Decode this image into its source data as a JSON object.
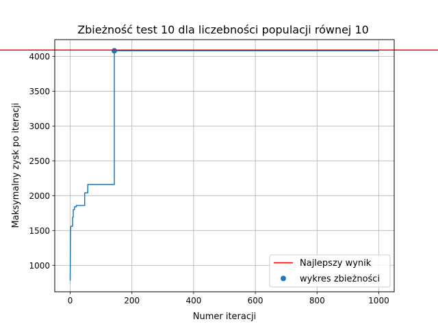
{
  "chart_data": {
    "type": "line",
    "title": "Zbieżność test 10 dla liczebności populacji równej 10",
    "xlabel": "Numer iteracji",
    "ylabel": "Maksymalny zysk po iteracji",
    "xlim": [
      -50,
      1050
    ],
    "ylim": [
      620,
      4240
    ],
    "xticks": [
      0,
      200,
      400,
      600,
      800,
      1000
    ],
    "yticks": [
      1000,
      1500,
      2000,
      2500,
      3000,
      3500,
      4000
    ],
    "grid": true,
    "legend_position": "lower-right",
    "series": [
      {
        "name": "wykres zbieżności",
        "kind": "line",
        "color": "#1f77b4",
        "points": [
          [
            0,
            780
          ],
          [
            1,
            1480
          ],
          [
            2,
            1560
          ],
          [
            8,
            1560
          ],
          [
            8,
            1690
          ],
          [
            10,
            1690
          ],
          [
            10,
            1800
          ],
          [
            14,
            1800
          ],
          [
            14,
            1840
          ],
          [
            20,
            1840
          ],
          [
            20,
            1860
          ],
          [
            47,
            1860
          ],
          [
            47,
            2040
          ],
          [
            57,
            2040
          ],
          [
            57,
            2160
          ],
          [
            143,
            2160
          ],
          [
            143,
            4080
          ],
          [
            1000,
            4080
          ]
        ]
      },
      {
        "name": "wykres zbieżności",
        "kind": "marker",
        "color": "#1f77b4",
        "points": [
          [
            143,
            4080
          ]
        ]
      },
      {
        "name": "Najlepszy wynik",
        "kind": "hline",
        "color": "#ff0000",
        "y": 4090
      }
    ],
    "legend": [
      {
        "label": "Najlepszy wynik",
        "kind": "line",
        "color": "#ff0000"
      },
      {
        "label": "wykres zbieżności",
        "kind": "marker",
        "color": "#1f77b4"
      }
    ]
  }
}
